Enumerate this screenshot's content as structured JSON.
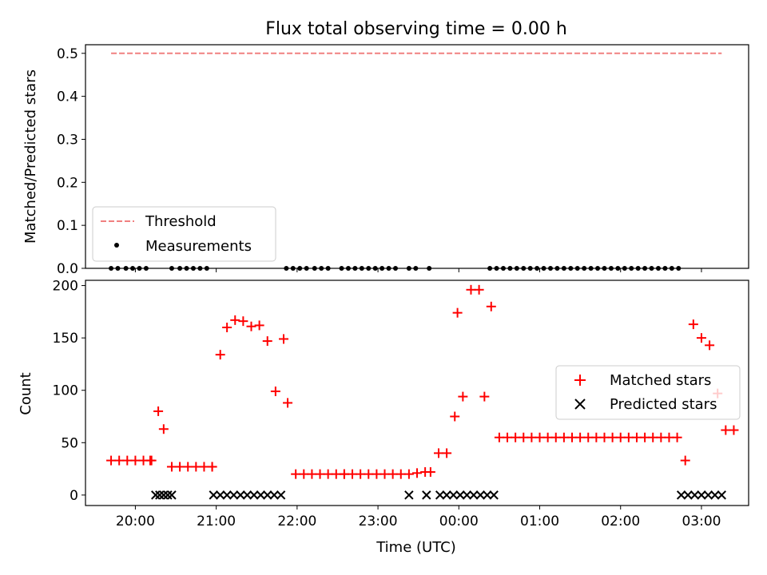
{
  "chart_data": [
    {
      "type": "scatter",
      "title": "Flux total observing time = 0.00 h",
      "xlabel": "",
      "ylabel": "Matched/Predicted stars",
      "ylim": [
        0,
        0.52
      ],
      "yticks": [
        0.0,
        0.1,
        0.2,
        0.3,
        0.4,
        0.5
      ],
      "ytick_labels": [
        "0.0",
        "0.1",
        "0.2",
        "0.3",
        "0.4",
        "0.5"
      ],
      "threshold": {
        "name": "Threshold",
        "value": 0.5,
        "x_range": [
          "19:42",
          "03:15"
        ],
        "color": "#f08080"
      },
      "measurements": {
        "name": "Measurements",
        "color": "#000000",
        "x": [
          "19:42",
          "19:47",
          "19:53",
          "19:58",
          "20:03",
          "20:08",
          "20:27",
          "20:33",
          "20:38",
          "20:43",
          "20:48",
          "20:53",
          "21:52",
          "21:57",
          "22:02",
          "22:07",
          "22:13",
          "22:18",
          "22:23",
          "22:33",
          "22:38",
          "22:43",
          "22:48",
          "22:53",
          "22:58",
          "23:03",
          "23:08",
          "23:13",
          "23:23",
          "23:28",
          "23:38",
          "00:23",
          "00:28",
          "00:33",
          "00:38",
          "00:43",
          "00:48",
          "00:53",
          "00:58",
          "01:03",
          "01:08",
          "01:13",
          "01:18",
          "01:23",
          "01:28",
          "01:33",
          "01:38",
          "01:43",
          "01:48",
          "01:53",
          "01:58",
          "02:03",
          "02:08",
          "02:13",
          "02:18",
          "02:23",
          "02:28",
          "02:33",
          "02:38",
          "02:43"
        ],
        "y": [
          0,
          0,
          0,
          0,
          0,
          0,
          0,
          0,
          0,
          0,
          0,
          0,
          0,
          0,
          0,
          0,
          0,
          0,
          0,
          0,
          0,
          0,
          0,
          0,
          0,
          0,
          0,
          0,
          0,
          0,
          0,
          0,
          0,
          0,
          0,
          0,
          0,
          0,
          0,
          0,
          0,
          0,
          0,
          0,
          0,
          0,
          0,
          0,
          0,
          0,
          0,
          0,
          0,
          0,
          0,
          0,
          0,
          0,
          0,
          0
        ]
      },
      "legend": {
        "placement": "lower-left",
        "entries": [
          "Threshold",
          "Measurements"
        ]
      }
    },
    {
      "type": "scatter",
      "title": "",
      "xlabel": "Time (UTC)",
      "ylabel": "Count",
      "ylim": [
        -10,
        205
      ],
      "yticks": [
        0,
        50,
        100,
        150,
        200
      ],
      "ytick_labels": [
        "0",
        "50",
        "100",
        "150",
        "200"
      ],
      "xlim": [
        "19:23",
        "03:35"
      ],
      "xticks": [
        "20:00",
        "21:00",
        "22:00",
        "23:00",
        "00:00",
        "01:00",
        "02:00",
        "03:00"
      ],
      "legend": {
        "placement": "right",
        "entries": [
          "Matched stars",
          "Predicted stars"
        ]
      },
      "series": [
        {
          "name": "Matched stars",
          "marker": "plus",
          "color": "#ff0000",
          "x": [
            "19:42",
            "19:48",
            "19:54",
            "20:00",
            "20:06",
            "20:11",
            "20:12",
            "20:17",
            "20:21",
            "20:27",
            "20:33",
            "20:39",
            "20:45",
            "20:51",
            "20:57",
            "20:57",
            "21:03",
            "21:08",
            "21:14",
            "21:20",
            "21:26",
            "21:32",
            "21:38",
            "21:44",
            "21:50",
            "21:53",
            "21:59",
            "22:05",
            "22:11",
            "22:17",
            "22:23",
            "22:29",
            "22:35",
            "22:35",
            "22:41",
            "22:47",
            "22:53",
            "22:59",
            "23:05",
            "23:11",
            "23:17",
            "23:23",
            "23:29",
            "23:35",
            "23:39",
            "23:45",
            "23:51",
            "23:57",
            "23:59",
            "00:03",
            "00:09",
            "00:15",
            "00:19",
            "00:24",
            "00:30",
            "00:36",
            "00:42",
            "00:48",
            "00:54",
            "01:00",
            "01:06",
            "01:12",
            "01:18",
            "01:24",
            "01:30",
            "01:36",
            "01:42",
            "01:48",
            "01:54",
            "02:00",
            "02:06",
            "02:12",
            "02:18",
            "02:24",
            "02:30",
            "02:36",
            "02:42",
            "02:48",
            "02:54",
            "03:00",
            "03:06",
            "03:12",
            "03:18",
            "03:24"
          ],
          "y": [
            33,
            33,
            33,
            33,
            33,
            33,
            33,
            80,
            63,
            27,
            27,
            27,
            27,
            27,
            27,
            27,
            134,
            160,
            167,
            166,
            161,
            162,
            147,
            99,
            149,
            88,
            20,
            20,
            20,
            20,
            20,
            20,
            20,
            20,
            20,
            20,
            20,
            20,
            20,
            20,
            20,
            20,
            21,
            22,
            22,
            40,
            40,
            75,
            174,
            94,
            196,
            196,
            94,
            180,
            55,
            55,
            55,
            55,
            55,
            55,
            55,
            55,
            55,
            55,
            55,
            55,
            55,
            55,
            55,
            55,
            55,
            55,
            55,
            55,
            55,
            55,
            55,
            33,
            163,
            150,
            143,
            97,
            62,
            62
          ],
          "_note": "points read approximately from plot"
        },
        {
          "name": "Predicted stars",
          "marker": "x",
          "color": "#000000",
          "x": [
            "20:15",
            "20:18",
            "20:21",
            "20:24",
            "20:27",
            "20:58",
            "21:03",
            "21:08",
            "21:13",
            "21:18",
            "21:23",
            "21:28",
            "21:33",
            "21:38",
            "21:43",
            "21:48",
            "23:23",
            "23:36",
            "23:46",
            "23:51",
            "23:56",
            "00:01",
            "00:06",
            "00:11",
            "00:16",
            "00:21",
            "00:26",
            "02:45",
            "02:50",
            "02:55",
            "03:00",
            "03:05",
            "03:10",
            "03:15"
          ],
          "y": [
            0,
            0,
            0,
            0,
            0,
            0,
            0,
            0,
            0,
            0,
            0,
            0,
            0,
            0,
            0,
            0,
            0,
            0,
            0,
            0,
            0,
            0,
            0,
            0,
            0,
            0,
            0,
            0,
            0,
            0,
            0,
            0,
            0,
            0
          ]
        }
      ]
    }
  ]
}
